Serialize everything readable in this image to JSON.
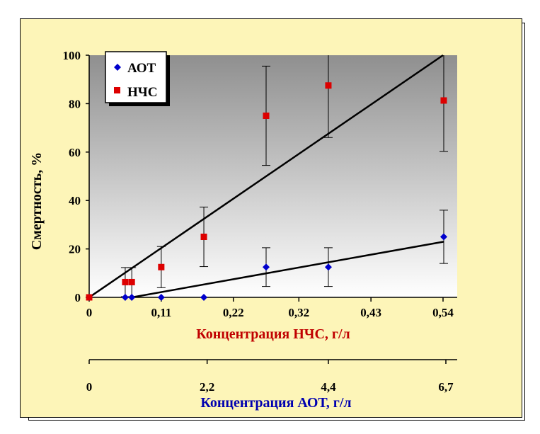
{
  "chart_data": {
    "type": "scatter",
    "ylabel": "Смертность, %",
    "ylim": [
      0,
      100
    ],
    "yticks": [
      "0",
      "20",
      "40",
      "60",
      "80",
      "100"
    ],
    "x_axis_primary": {
      "label": "Концентрация НЧС, г/л",
      "xlim": [
        0,
        0.55
      ],
      "tick_values": [
        0,
        0.11,
        0.22,
        0.32,
        0.43,
        0.54
      ],
      "tick_labels": [
        "0",
        "0,11",
        "0,22",
        "0,32",
        "0,43",
        "0,54"
      ]
    },
    "x_axis_secondary": {
      "label": "Концентрация АОТ, г/л",
      "tick_labels": [
        "0",
        "2,2",
        "4,4",
        "6,7"
      ],
      "tick_positions_primary_units": [
        0,
        0.18,
        0.365,
        0.55
      ]
    },
    "legend_position": "top-left",
    "series": [
      {
        "name": "АОТ",
        "color": "#0000cc",
        "marker": "diamond",
        "points": [
          {
            "x": 0,
            "y": 0
          },
          {
            "x": 0.055,
            "y": 0
          },
          {
            "x": 0.065,
            "y": 0
          },
          {
            "x": 0.11,
            "y": 0
          },
          {
            "x": 0.175,
            "y": 0
          },
          {
            "x": 0.27,
            "y": 12.5,
            "err": 8
          },
          {
            "x": 0.365,
            "y": 12.5,
            "err": 8
          },
          {
            "x": 0.55,
            "y": 25,
            "err": 11
          }
        ],
        "trendline": [
          [
            0.065,
            0
          ],
          [
            0.55,
            23
          ]
        ]
      },
      {
        "name": "НЧС",
        "color": "#dd0000",
        "marker": "square",
        "points": [
          {
            "x": 0,
            "y": 0
          },
          {
            "x": 0.055,
            "y": 6.3,
            "err": 6
          },
          {
            "x": 0.065,
            "y": 6.3,
            "err": 6
          },
          {
            "x": 0.11,
            "y": 12.5,
            "err": 8.5
          },
          {
            "x": 0.175,
            "y": 25,
            "err": 12.3
          },
          {
            "x": 0.27,
            "y": 75,
            "err": 20.5
          },
          {
            "x": 0.365,
            "y": 87.5,
            "err": 21.5
          },
          {
            "x": 0.55,
            "y": 81.3,
            "err": 21
          }
        ],
        "trendline": [
          [
            0,
            0
          ],
          [
            0.54,
            100
          ]
        ]
      }
    ],
    "grid": false,
    "background": "gray gradient"
  }
}
